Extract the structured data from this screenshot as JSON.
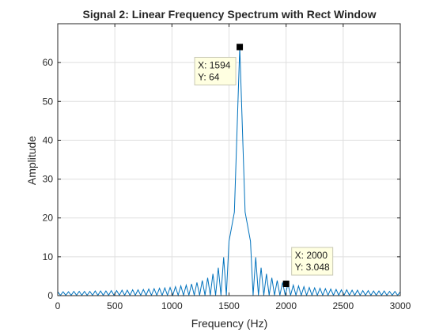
{
  "chart_data": {
    "type": "line",
    "title": "Signal 2: Linear Frequency Spectrum with Rect Window",
    "xlabel": "Frequency (Hz)",
    "ylabel": "Amplitude",
    "xlim": [
      0,
      3000
    ],
    "ylim": [
      0,
      70
    ],
    "xticks": [
      0,
      500,
      1000,
      1500,
      2000,
      2500,
      3000
    ],
    "xtick_labels": [
      "0",
      "500",
      "1000",
      "1500",
      "2000",
      "2500",
      "3000"
    ],
    "yticks": [
      0,
      10,
      20,
      30,
      40,
      50,
      60
    ],
    "ytick_labels": [
      "0",
      "10",
      "20",
      "30",
      "40",
      "50",
      "60"
    ],
    "grid": true,
    "series": [
      {
        "color": "#0072bd",
        "x": [
          0,
          47,
          94,
          141,
          188,
          234,
          281,
          328,
          375,
          422,
          469,
          516,
          563,
          609,
          656,
          703,
          750,
          797,
          844,
          891,
          938,
          984,
          1031,
          1078,
          1125,
          1172,
          1219,
          1266,
          1313,
          1359,
          1406,
          1453,
          1500,
          1547,
          1594,
          1641,
          1688,
          1734,
          1781,
          1828,
          1875,
          1922,
          1969,
          2016,
          2063,
          2109,
          2156,
          2203,
          2250,
          2297,
          2344,
          2391,
          2438,
          2484,
          2531,
          2578,
          2625,
          2672,
          2719,
          2766,
          2813,
          2859,
          2906,
          2953,
          3000
        ],
        "y": [
          1.0,
          1.0,
          1.0,
          1.1,
          1.1,
          1.1,
          1.1,
          1.2,
          1.2,
          1.2,
          1.3,
          1.3,
          1.4,
          1.4,
          1.5,
          1.5,
          1.6,
          1.7,
          1.8,
          1.9,
          2.0,
          2.1,
          2.3,
          2.5,
          2.7,
          3.0,
          3.4,
          3.9,
          4.6,
          5.6,
          7.2,
          9.9,
          14.0,
          21.5,
          64,
          21.5,
          14.0,
          9.9,
          7.2,
          5.6,
          4.6,
          3.9,
          3.4,
          3.0,
          2.7,
          2.5,
          2.3,
          2.1,
          2.0,
          1.9,
          1.8,
          1.7,
          1.6,
          1.5,
          1.5,
          1.4,
          1.4,
          1.3,
          1.3,
          1.2,
          1.2,
          1.2,
          1.1,
          1.1,
          1.0
        ]
      }
    ],
    "datatips": [
      {
        "x": 1594,
        "y": 64,
        "x_text": "X: 1594",
        "y_text": "Y: 64"
      },
      {
        "x": 2000,
        "y": 3.048,
        "x_text": "X: 2000",
        "y_text": "Y: 3.048"
      }
    ]
  }
}
